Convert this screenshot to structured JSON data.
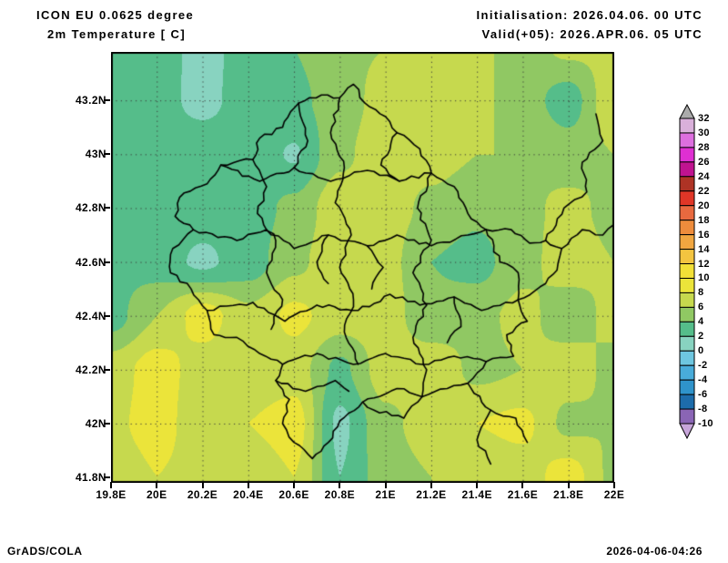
{
  "header": {
    "model_title": "ICON EU 0.0625 degree",
    "field_title": "2m Temperature [ C]",
    "init_label": "Initialisation: 2026.04.06. 00 UTC",
    "valid_label": "Valid(+05): 2026.APR.06. 05 UTC"
  },
  "footer": {
    "credit": "GrADS/COLA",
    "timestamp": "2026-04-06-04:26"
  },
  "axes": {
    "x_tick_labels": [
      "19.8E",
      "20E",
      "20.2E",
      "20.4E",
      "20.6E",
      "20.8E",
      "21E",
      "21.2E",
      "21.4E",
      "21.6E",
      "21.8E",
      "22E"
    ],
    "x_tick_lons": [
      19.8,
      20.0,
      20.2,
      20.4,
      20.6,
      20.8,
      21.0,
      21.2,
      21.4,
      21.6,
      21.8,
      22.0
    ],
    "y_tick_labels": [
      "43.2N",
      "43N",
      "42.8N",
      "42.6N",
      "42.4N",
      "42.2N",
      "42N",
      "41.8N"
    ],
    "y_tick_lats": [
      43.2,
      43.0,
      42.8,
      42.6,
      42.4,
      42.2,
      42.0,
      41.8
    ],
    "lon_range": [
      19.8,
      22.0
    ],
    "lat_range": [
      41.78,
      43.38
    ],
    "grid_line_style": "dotted",
    "grid_line_color": "#3a3a3a"
  },
  "colorbar": {
    "tick_labels": [
      "32",
      "30",
      "28",
      "26",
      "24",
      "22",
      "20",
      "18",
      "16",
      "14",
      "12",
      "10",
      "8",
      "6",
      "4",
      "2",
      "0",
      "-2",
      "-4",
      "-6",
      "-8",
      "-10"
    ],
    "segment_colors_top_to_bottom": [
      "#d9b0da",
      "#dd6fdf",
      "#df2fd2",
      "#c01390",
      "#ae3325",
      "#e03627",
      "#e8693f",
      "#ee8c3c",
      "#f1a640",
      "#f3c440",
      "#f2e037",
      "#ebe43a",
      "#c6d94e",
      "#90c863",
      "#55bd8a",
      "#88d3c0",
      "#6ec6e0",
      "#49acda",
      "#2f93cb",
      "#1d6cab",
      "#8a65b5"
    ],
    "arrow_top_color": "#ababab",
    "arrow_bottom_color": "#c7a5da",
    "outline_color": "#000000"
  },
  "chart_data": {
    "type": "heatmap",
    "title": "2m Temperature [ C]",
    "subtitle": "ICON EU 0.0625 degree, filled contours, interval 2 C",
    "contour_interval": 2,
    "x_lons": [
      19.8,
      20.0,
      20.2,
      20.4,
      20.6,
      20.8,
      21.0,
      21.2,
      21.4,
      21.6,
      21.8,
      22.0
    ],
    "y_lats": [
      43.4,
      43.2,
      43.0,
      42.8,
      42.6,
      42.4,
      42.2,
      42.0,
      41.8
    ],
    "values_c": [
      [
        3.5,
        3.0,
        1.2,
        3.0,
        4.0,
        5.5,
        6.0,
        6.5,
        6.5,
        5.0,
        6.5,
        6.5
      ],
      [
        3.2,
        2.6,
        1.5,
        2.8,
        3.5,
        5.0,
        6.8,
        6.8,
        6.5,
        5.0,
        3.0,
        7.5
      ],
      [
        3.4,
        3.0,
        3.2,
        3.2,
        1.8,
        5.5,
        7.5,
        6.8,
        6.0,
        6.0,
        5.0,
        6.0
      ],
      [
        3.0,
        3.4,
        3.0,
        3.0,
        4.5,
        7.5,
        7.0,
        5.5,
        4.5,
        5.5,
        6.5,
        5.5
      ],
      [
        3.4,
        3.0,
        1.6,
        3.0,
        5.5,
        7.5,
        6.8,
        4.0,
        3.2,
        5.5,
        6.8,
        6.0
      ],
      [
        3.2,
        6.0,
        9.0,
        6.5,
        8.5,
        7.0,
        7.0,
        4.5,
        5.5,
        6.5,
        5.0,
        6.5
      ],
      [
        7.0,
        9.0,
        7.0,
        6.5,
        7.0,
        3.5,
        7.0,
        7.5,
        5.5,
        6.0,
        7.0,
        5.5
      ],
      [
        7.5,
        9.0,
        6.5,
        8.0,
        9.0,
        1.5,
        5.5,
        7.0,
        8.0,
        8.5,
        5.5,
        6.0
      ],
      [
        6.5,
        8.0,
        7.0,
        6.5,
        8.0,
        2.0,
        5.0,
        6.0,
        6.5,
        7.0,
        9.0,
        5.5
      ]
    ],
    "field_palette": {
      "-2": "#6ec6e0",
      "0": "#88d3c0",
      "2": "#55bd8a",
      "4": "#90c863",
      "6": "#c6d94e",
      "8": "#ebe43a",
      "10": "#f2e037"
    }
  },
  "map_borders": {
    "border_color": "#000000",
    "outline": [
      [
        20.86,
        43.26
      ],
      [
        20.91,
        43.19
      ],
      [
        21.0,
        43.14
      ],
      [
        21.05,
        43.08
      ],
      [
        21.15,
        43.02
      ],
      [
        21.2,
        42.93
      ],
      [
        21.3,
        42.88
      ],
      [
        21.36,
        42.78
      ],
      [
        21.44,
        42.72
      ],
      [
        21.55,
        42.72
      ],
      [
        21.63,
        42.67
      ],
      [
        21.7,
        42.68
      ],
      [
        21.77,
        42.65
      ],
      [
        21.75,
        42.57
      ],
      [
        21.7,
        42.52
      ],
      [
        21.58,
        42.46
      ],
      [
        21.62,
        42.38
      ],
      [
        21.53,
        42.33
      ],
      [
        21.56,
        42.25
      ],
      [
        21.44,
        42.23
      ],
      [
        21.36,
        42.15
      ],
      [
        21.27,
        42.13
      ],
      [
        21.16,
        42.1
      ],
      [
        21.05,
        42.13
      ],
      [
        20.9,
        42.08
      ],
      [
        20.8,
        42.01
      ],
      [
        20.75,
        41.93
      ],
      [
        20.68,
        41.87
      ],
      [
        20.6,
        41.93
      ],
      [
        20.55,
        42.0
      ],
      [
        20.58,
        42.09
      ],
      [
        20.52,
        42.16
      ],
      [
        20.55,
        42.22
      ],
      [
        20.45,
        42.26
      ],
      [
        20.35,
        42.32
      ],
      [
        20.25,
        42.33
      ],
      [
        20.22,
        42.42
      ],
      [
        20.15,
        42.5
      ],
      [
        20.06,
        42.56
      ],
      [
        20.07,
        42.65
      ],
      [
        20.16,
        42.72
      ],
      [
        20.08,
        42.77
      ],
      [
        20.1,
        42.84
      ],
      [
        20.22,
        42.89
      ],
      [
        20.28,
        42.96
      ],
      [
        20.42,
        42.98
      ],
      [
        20.45,
        43.06
      ],
      [
        20.55,
        43.1
      ],
      [
        20.62,
        43.19
      ],
      [
        20.72,
        43.22
      ],
      [
        20.8,
        43.21
      ],
      [
        20.86,
        43.26
      ]
    ],
    "internal_lines": [
      [
        [
          20.22,
          42.42
        ],
        [
          20.42,
          42.45
        ],
        [
          20.56,
          42.38
        ],
        [
          20.7,
          42.44
        ],
        [
          20.88,
          42.42
        ],
        [
          21.02,
          42.48
        ],
        [
          21.15,
          42.44
        ],
        [
          21.3,
          42.47
        ],
        [
          21.42,
          42.42
        ],
        [
          21.58,
          42.46
        ]
      ],
      [
        [
          20.16,
          42.72
        ],
        [
          20.35,
          42.68
        ],
        [
          20.48,
          42.72
        ],
        [
          20.6,
          42.65
        ],
        [
          20.75,
          42.7
        ],
        [
          20.92,
          42.66
        ],
        [
          21.05,
          42.7
        ],
        [
          21.2,
          42.66
        ],
        [
          21.36,
          42.7
        ],
        [
          21.44,
          42.72
        ]
      ],
      [
        [
          20.42,
          42.98
        ],
        [
          20.48,
          42.88
        ],
        [
          20.44,
          42.78
        ],
        [
          20.52,
          42.68
        ],
        [
          20.48,
          42.56
        ],
        [
          20.55,
          42.46
        ],
        [
          20.5,
          42.35
        ]
      ],
      [
        [
          20.8,
          43.21
        ],
        [
          20.76,
          43.08
        ],
        [
          20.82,
          42.95
        ],
        [
          20.78,
          42.82
        ],
        [
          20.85,
          42.7
        ],
        [
          20.8,
          42.58
        ],
        [
          20.86,
          42.46
        ],
        [
          20.82,
          42.34
        ],
        [
          20.88,
          42.22
        ]
      ],
      [
        [
          21.2,
          42.93
        ],
        [
          21.14,
          42.8
        ],
        [
          21.2,
          42.68
        ],
        [
          21.12,
          42.56
        ],
        [
          21.18,
          42.44
        ],
        [
          21.12,
          42.32
        ],
        [
          21.18,
          42.2
        ],
        [
          21.16,
          42.1
        ]
      ],
      [
        [
          20.55,
          42.22
        ],
        [
          20.7,
          42.26
        ],
        [
          20.86,
          42.22
        ],
        [
          21.0,
          42.26
        ],
        [
          21.16,
          42.22
        ],
        [
          21.3,
          42.25
        ],
        [
          21.44,
          42.23
        ]
      ],
      [
        [
          20.28,
          42.96
        ],
        [
          20.45,
          42.9
        ],
        [
          20.6,
          42.95
        ],
        [
          20.76,
          42.9
        ],
        [
          20.92,
          42.94
        ],
        [
          21.06,
          42.9
        ],
        [
          21.2,
          42.93
        ]
      ],
      [
        [
          20.62,
          43.19
        ],
        [
          20.66,
          43.05
        ],
        [
          20.6,
          42.95
        ]
      ],
      [
        [
          21.05,
          43.08
        ],
        [
          20.98,
          42.96
        ],
        [
          21.06,
          42.9
        ]
      ],
      [
        [
          21.16,
          42.1
        ],
        [
          21.08,
          42.02
        ],
        [
          20.95,
          42.05
        ],
        [
          20.9,
          42.08
        ]
      ],
      [
        [
          20.52,
          42.16
        ],
        [
          20.65,
          42.12
        ],
        [
          20.78,
          42.16
        ],
        [
          20.84,
          42.12
        ]
      ],
      [
        [
          21.44,
          42.72
        ],
        [
          21.5,
          42.6
        ],
        [
          21.58,
          42.56
        ],
        [
          21.58,
          42.46
        ]
      ],
      [
        [
          21.77,
          42.65
        ],
        [
          21.86,
          42.72
        ],
        [
          21.95,
          42.7
        ],
        [
          22.0,
          42.74
        ]
      ],
      [
        [
          21.7,
          42.68
        ],
        [
          21.78,
          42.8
        ],
        [
          21.88,
          42.86
        ],
        [
          21.86,
          42.97
        ],
        [
          21.95,
          43.05
        ],
        [
          21.92,
          43.15
        ]
      ],
      [
        [
          21.36,
          42.15
        ],
        [
          21.46,
          42.05
        ],
        [
          21.57,
          42.02
        ],
        [
          21.62,
          41.93
        ]
      ],
      [
        [
          21.46,
          42.05
        ],
        [
          21.4,
          41.94
        ],
        [
          21.46,
          41.85
        ]
      ],
      [
        [
          20.92,
          42.66
        ],
        [
          20.99,
          42.58
        ],
        [
          20.94,
          42.5
        ]
      ],
      [
        [
          20.75,
          42.7
        ],
        [
          20.7,
          42.6
        ],
        [
          20.75,
          42.52
        ]
      ],
      [
        [
          21.3,
          42.47
        ],
        [
          21.33,
          42.36
        ],
        [
          21.27,
          42.3
        ]
      ]
    ]
  }
}
